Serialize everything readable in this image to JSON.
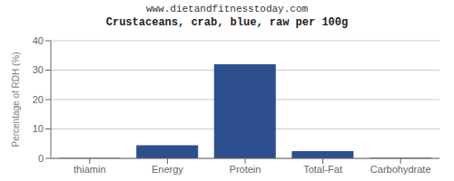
{
  "chart_data": {
    "type": "bar",
    "title": "Crustaceans, crab, blue, raw per 100g",
    "subtitle": "www.dietandfitnesstoday.com",
    "categories": [
      "thiamin",
      "Energy",
      "Protein",
      "Total-Fat",
      "Carbohydrate"
    ],
    "values": [
      0.15,
      4.5,
      32,
      2.5,
      0.2
    ],
    "color": "#2d4f8e",
    "ylabel": "Percentage of RDH (%)",
    "ylim": [
      0,
      40
    ],
    "yticks": [
      0,
      10,
      20,
      30,
      40
    ],
    "grid": true
  }
}
